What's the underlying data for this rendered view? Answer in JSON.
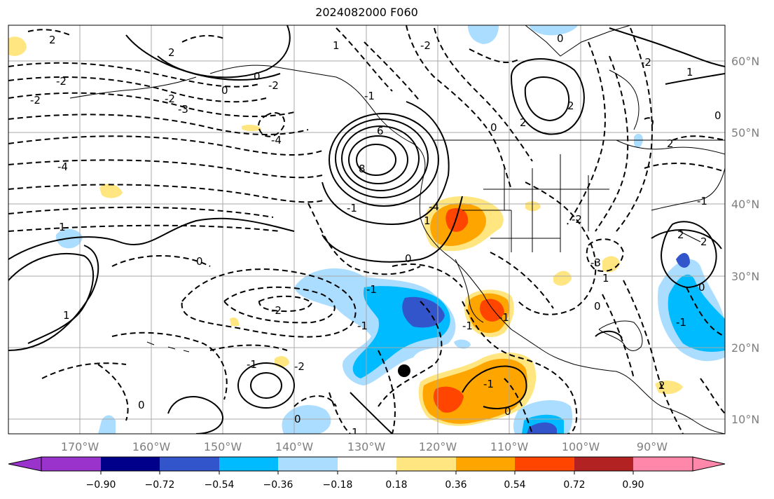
{
  "title": "2024082000 F060",
  "longitude_ticks": [
    "170°W",
    "160°W",
    "150°W",
    "140°W",
    "130°W",
    "120°W",
    "110°W",
    "100°W",
    "90°W"
  ],
  "latitude_ticks": [
    "60°N",
    "50°N",
    "40°N",
    "30°N",
    "20°N",
    "10°N"
  ],
  "colorbar": {
    "labels": [
      "−0.90",
      "−0.72",
      "−0.54",
      "−0.36",
      "−0.18",
      "0.18",
      "0.36",
      "0.54",
      "0.72",
      "0.90"
    ],
    "colors": [
      "#9933cc",
      "#00008b",
      "#3355cc",
      "#00bbff",
      "#aaddff",
      "#ffffff",
      "#ffe680",
      "#ffa500",
      "#ff4500",
      "#b22222",
      "#ff88aa"
    ]
  },
  "contour_labels": [
    "2",
    "-2",
    "-2",
    "-2",
    "2",
    "-3",
    "0",
    "0",
    "-2",
    "0",
    "0",
    "2",
    "1",
    "-4",
    "-4",
    "-1",
    "-1",
    "0",
    "-1",
    "-2",
    "0",
    "1",
    "1",
    "-1",
    "0",
    "-2",
    "-1",
    "-2",
    "0",
    "-3",
    "-1",
    "-1",
    "0",
    "-2",
    "0",
    "2",
    "1",
    "-1",
    "1",
    "-2",
    "1",
    "-1",
    "0",
    "2",
    "2",
    "0",
    "6",
    "8",
    "2",
    "2",
    "-4",
    "-1",
    "1"
  ],
  "map_elements": {
    "marker": "black-dot-marker"
  }
}
